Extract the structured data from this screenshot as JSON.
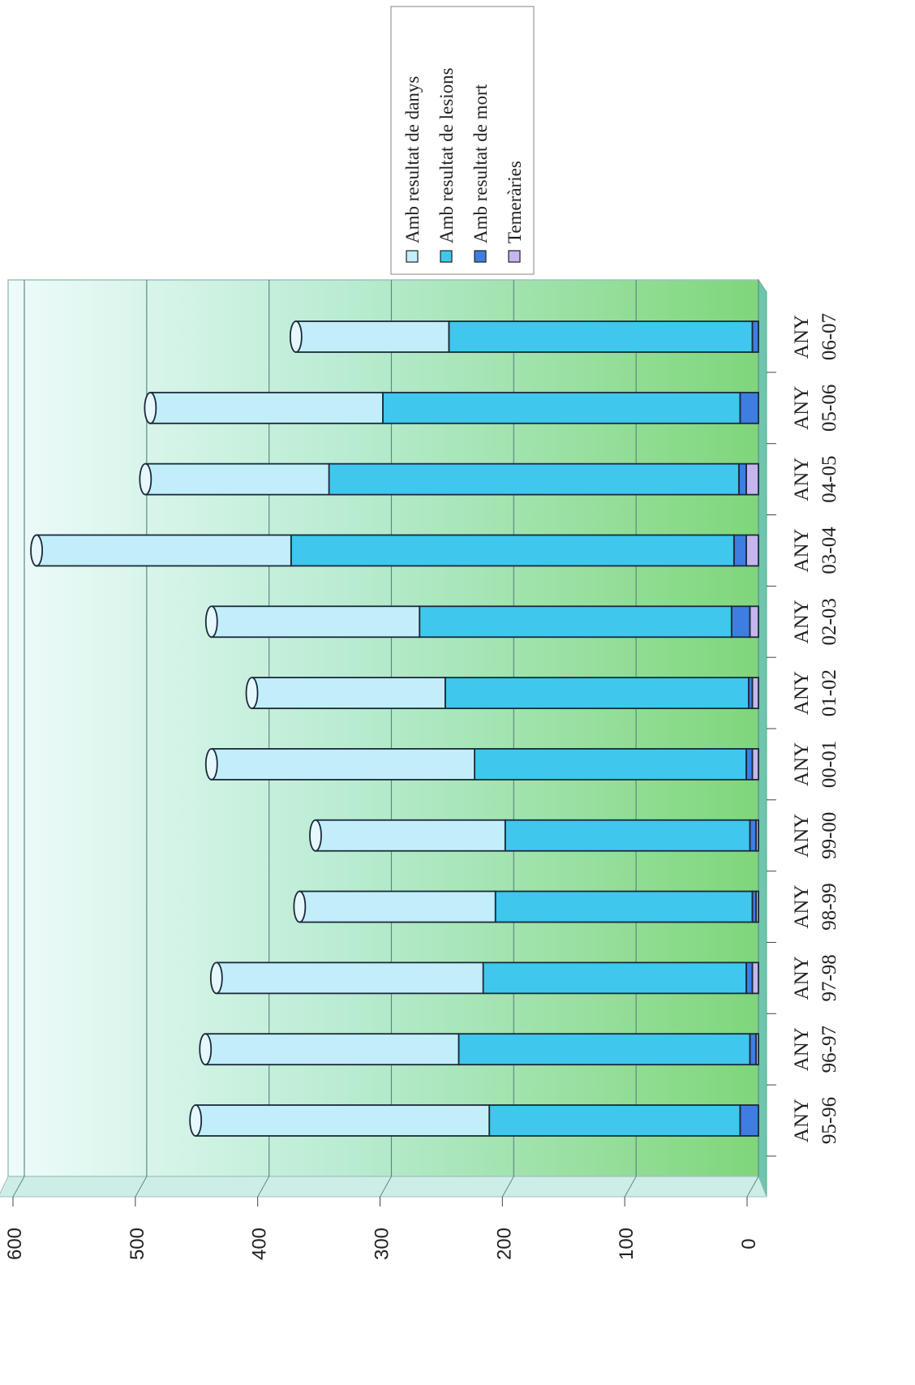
{
  "chart_data": {
    "type": "bar",
    "orientation": "horizontal",
    "stacked": true,
    "three_d": true,
    "categories": [
      "ANY 95-96",
      "ANY 96-97",
      "ANY 97-98",
      "ANY 98-99",
      "ANY 99-00",
      "ANY 00-01",
      "ANY 01-02",
      "ANY 02-03",
      "ANY 03-04",
      "ANY 04-05",
      "ANY 05-06",
      "ANY 06-07"
    ],
    "series": [
      {
        "name": "Temeràries",
        "color": "#c7b5ee",
        "values": [
          0,
          2,
          5,
          2,
          2,
          5,
          5,
          7,
          10,
          10,
          0,
          0
        ]
      },
      {
        "name": "Amb resultat de mort",
        "color": "#3d7ee0",
        "values": [
          15,
          5,
          5,
          3,
          5,
          5,
          3,
          15,
          10,
          6,
          15,
          5
        ]
      },
      {
        "name": "Amb resultat de lesions",
        "color": "#3fc7ee",
        "values": [
          205,
          238,
          215,
          210,
          200,
          222,
          248,
          255,
          362,
          335,
          292,
          248
        ]
      },
      {
        "name": "Amb resultat de danys",
        "color": "#c2eefa",
        "values": [
          240,
          207,
          218,
          160,
          155,
          215,
          158,
          170,
          208,
          150,
          190,
          125
        ]
      }
    ],
    "legend_order": [
      "Amb resultat de danys",
      "Amb resultat de lesions",
      "Amb resultat de mort",
      "Temeràries"
    ],
    "xlim": [
      0,
      600
    ],
    "ticks": [
      "0",
      "100",
      "200",
      "300",
      "400",
      "500",
      "600"
    ],
    "grid": true,
    "legend_position": "top-right",
    "title": "",
    "xlabel": "",
    "ylabel": ""
  }
}
